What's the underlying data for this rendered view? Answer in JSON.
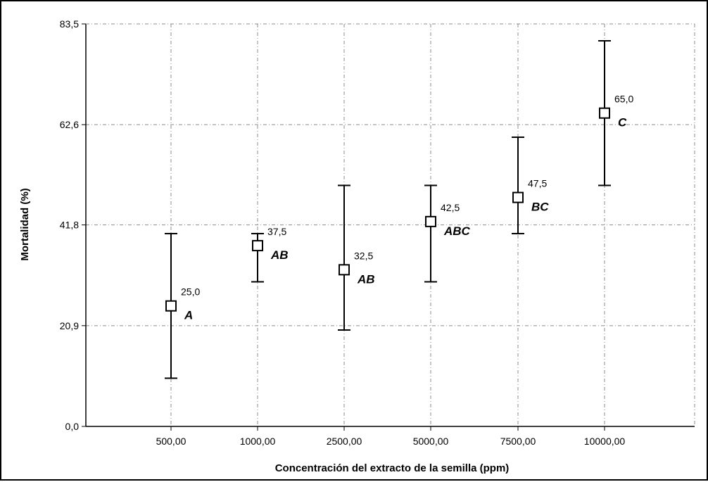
{
  "chart_data": {
    "type": "scatter",
    "title": "",
    "xlabel": "Concentración del extracto de la semilla (ppm)",
    "ylabel": "Mortalidad (%)",
    "categories": [
      "500,00",
      "1000,00",
      "2500,00",
      "5000,00",
      "7500,00",
      "10000,00"
    ],
    "y_ticks": [
      "0,0",
      "20,9",
      "41,8",
      "62,6",
      "83,5"
    ],
    "y_tick_values": [
      0,
      20.9,
      41.8,
      62.6,
      83.5
    ],
    "ylim": [
      0,
      83.5
    ],
    "grid": true,
    "series": [
      {
        "values": [
          25.0,
          37.5,
          32.5,
          42.5,
          47.5,
          65.0
        ],
        "value_labels": [
          "25,0",
          "37,5",
          "32,5",
          "42,5",
          "47,5",
          "65,0"
        ],
        "error_low": [
          10.0,
          30.0,
          20.0,
          30.0,
          40.0,
          50.0
        ],
        "error_high": [
          40.0,
          40.0,
          50.0,
          50.0,
          60.0,
          80.0
        ],
        "groups": [
          "A",
          "AB",
          "AB",
          "ABC",
          "BC",
          "C"
        ]
      }
    ]
  },
  "colors": {
    "marker_fill": "#ffffff",
    "marker_stroke": "#000000",
    "error_bar": "#000000",
    "grid": "#8c8c8c"
  }
}
